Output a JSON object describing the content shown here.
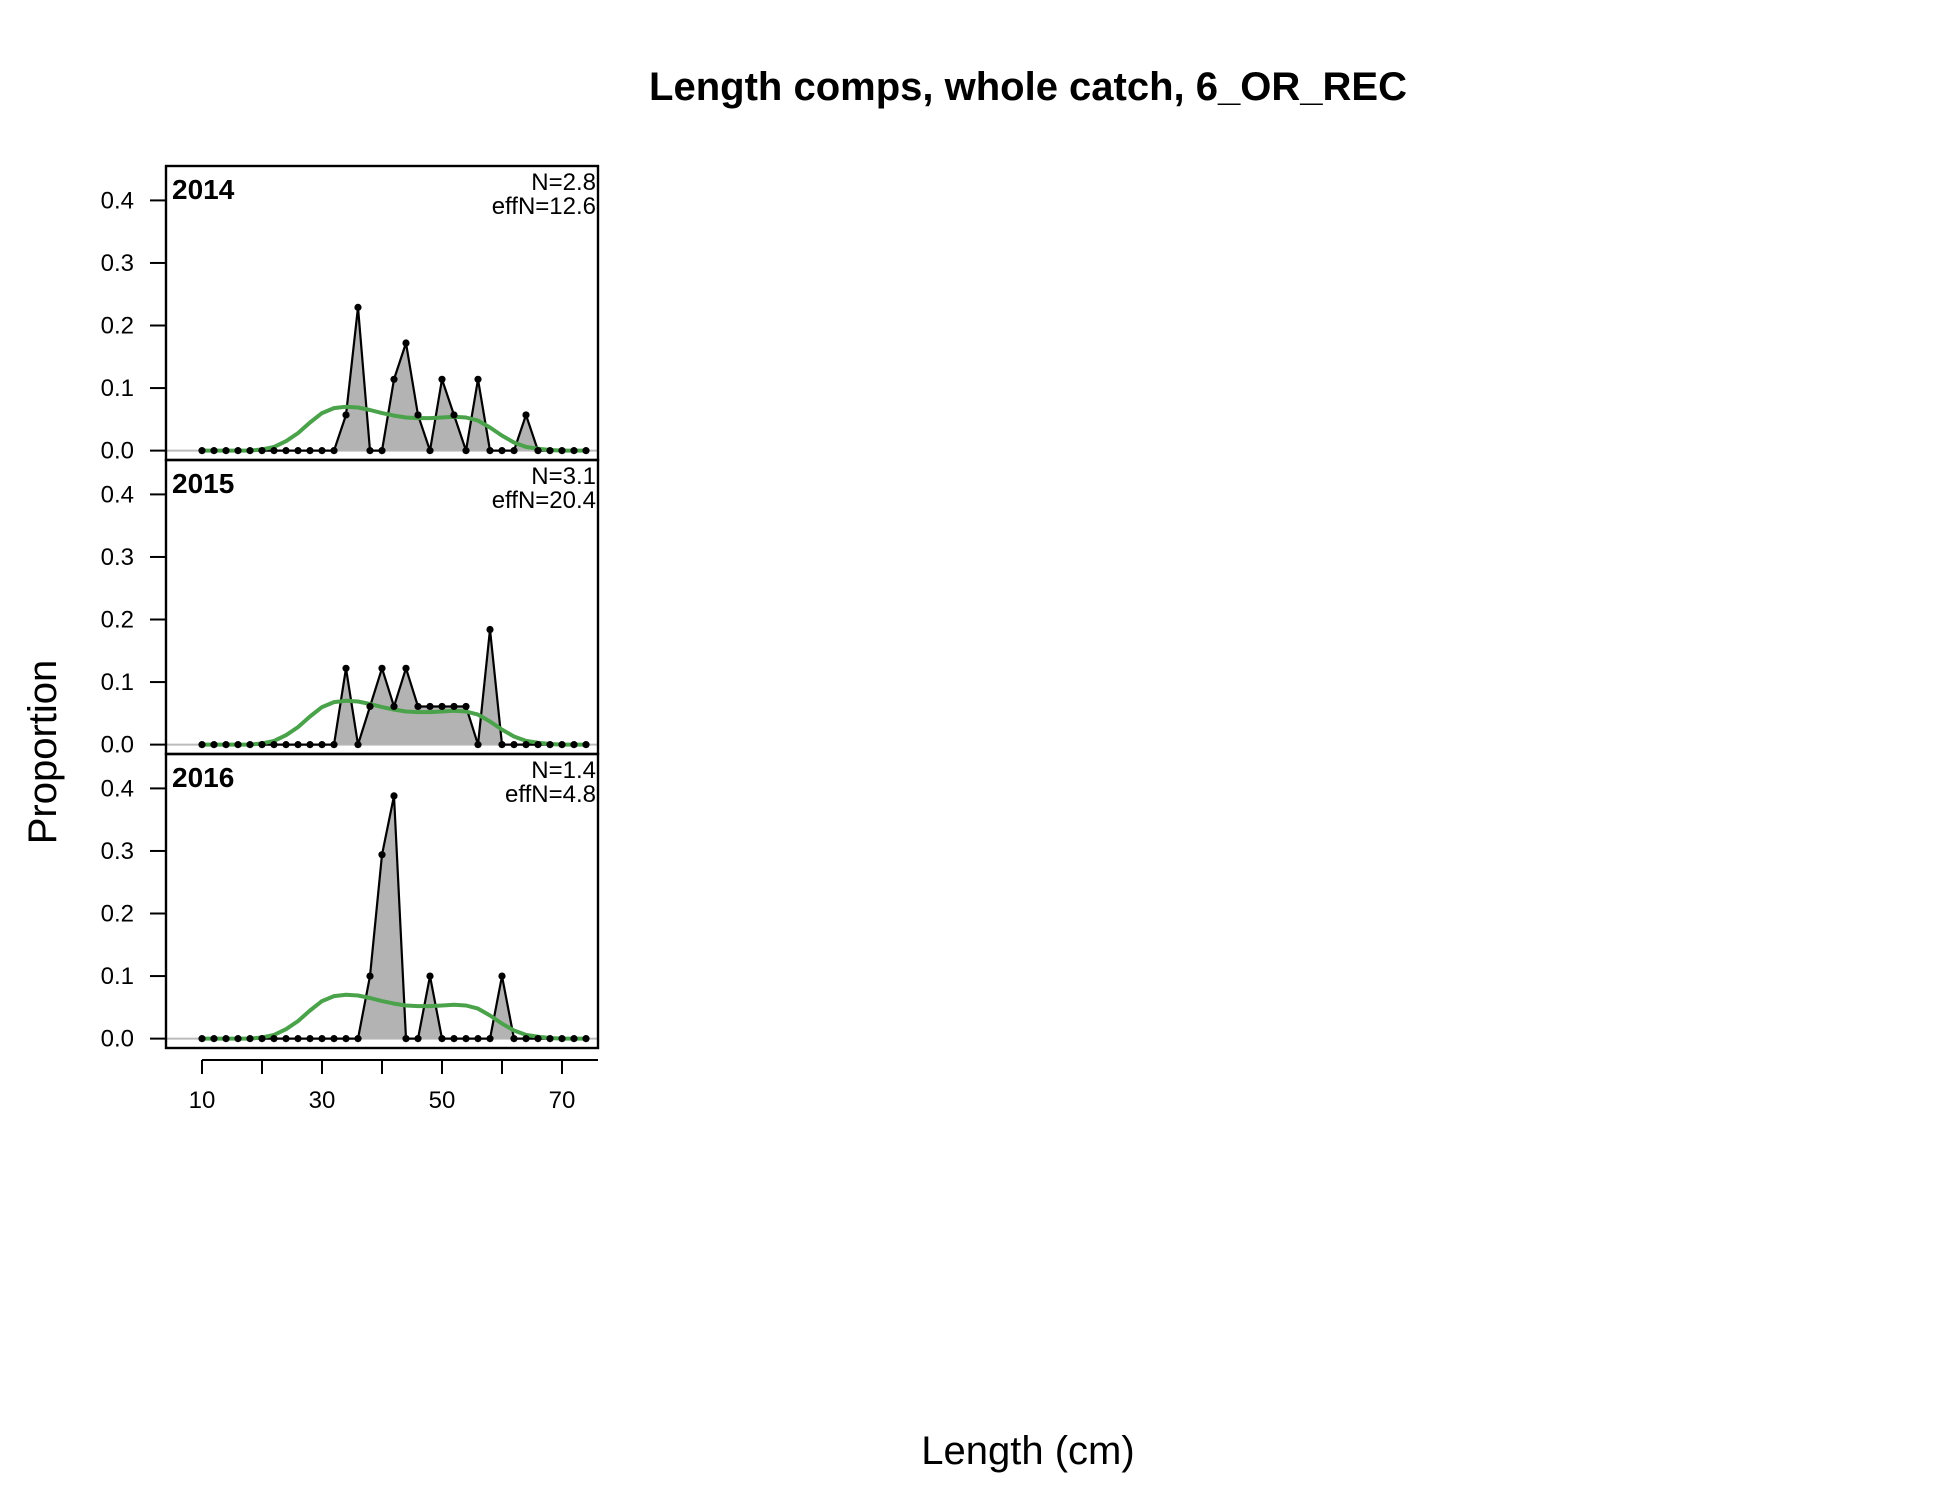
{
  "chart_data": {
    "type": "area",
    "title": "Length comps, whole catch, 6_OR_REC",
    "xlabel": "Length (cm)",
    "ylabel": "Proportion",
    "xlim": [
      4,
      76
    ],
    "ylim": [
      -0.015,
      0.455
    ],
    "x_ticks": [
      10,
      30,
      50,
      70
    ],
    "x_minor_ticks": [
      10,
      20,
      30,
      40,
      50,
      60,
      70,
      80
    ],
    "y_ticks": [
      "0.0",
      "0.1",
      "0.2",
      "0.3",
      "0.4"
    ],
    "x": [
      10,
      12,
      14,
      16,
      18,
      20,
      22,
      24,
      26,
      28,
      30,
      32,
      34,
      36,
      38,
      40,
      42,
      44,
      46,
      48,
      50,
      52,
      54,
      56,
      58,
      60,
      62,
      64,
      66,
      68,
      70,
      72,
      74
    ],
    "colors": {
      "observed_fill": "#b3b3b3",
      "observed_line": "#000000",
      "expected_line": "#4aa34a",
      "zero_line": "#bbbbbb"
    },
    "panels": [
      {
        "year": "2014",
        "n_label": "N=2.8",
        "effn_label": "effN=12.6",
        "observed": [
          0,
          0,
          0,
          0,
          0,
          0,
          0,
          0,
          0,
          0,
          0,
          0,
          0.057,
          0.229,
          0,
          0,
          0.114,
          0.172,
          0.057,
          0,
          0.114,
          0.057,
          0,
          0.114,
          0,
          0,
          0,
          0.057,
          0,
          0,
          0,
          0,
          0
        ],
        "expected": [
          0,
          0,
          0,
          0,
          0,
          0.002,
          0.006,
          0.015,
          0.028,
          0.045,
          0.06,
          0.068,
          0.07,
          0.069,
          0.065,
          0.06,
          0.056,
          0.053,
          0.052,
          0.052,
          0.053,
          0.054,
          0.053,
          0.048,
          0.037,
          0.024,
          0.013,
          0.006,
          0.003,
          0.001,
          0,
          0,
          0
        ]
      },
      {
        "year": "2015",
        "n_label": "N=3.1",
        "effn_label": "effN=20.4",
        "observed": [
          0,
          0,
          0,
          0,
          0,
          0,
          0,
          0,
          0,
          0,
          0,
          0,
          0.122,
          0,
          0.061,
          0.122,
          0.061,
          0.122,
          0.061,
          0.061,
          0.061,
          0.061,
          0.061,
          0,
          0.184,
          0,
          0,
          0,
          0,
          0,
          0,
          0,
          0
        ],
        "expected": [
          0,
          0,
          0,
          0,
          0,
          0.002,
          0.006,
          0.015,
          0.028,
          0.045,
          0.06,
          0.068,
          0.07,
          0.069,
          0.065,
          0.06,
          0.056,
          0.053,
          0.052,
          0.052,
          0.053,
          0.054,
          0.053,
          0.048,
          0.037,
          0.024,
          0.013,
          0.006,
          0.003,
          0.001,
          0,
          0,
          0
        ]
      },
      {
        "year": "2016",
        "n_label": "N=1.4",
        "effn_label": "effN=4.8",
        "observed": [
          0,
          0,
          0,
          0,
          0,
          0,
          0,
          0,
          0,
          0,
          0,
          0,
          0,
          0,
          0.1,
          0.294,
          0.388,
          0,
          0,
          0.1,
          0,
          0,
          0,
          0,
          0,
          0.1,
          0,
          0,
          0,
          0,
          0,
          0,
          0
        ],
        "expected": [
          0,
          0,
          0,
          0,
          0,
          0.002,
          0.006,
          0.015,
          0.028,
          0.045,
          0.06,
          0.068,
          0.07,
          0.069,
          0.065,
          0.06,
          0.056,
          0.053,
          0.052,
          0.052,
          0.053,
          0.054,
          0.053,
          0.048,
          0.037,
          0.024,
          0.013,
          0.006,
          0.003,
          0.001,
          0,
          0,
          0
        ]
      }
    ]
  }
}
